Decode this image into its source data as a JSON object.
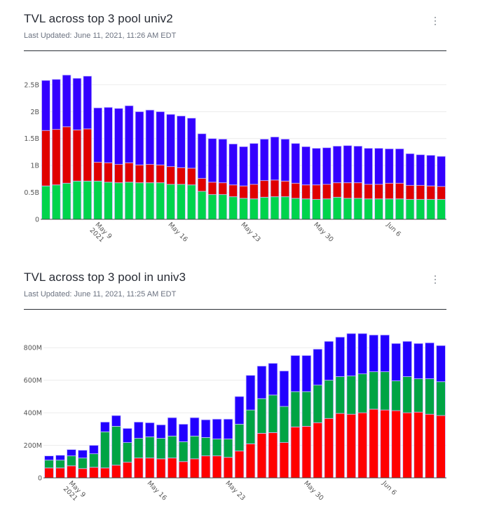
{
  "cards": [
    {
      "title": "TVL across top 3 pool univ2",
      "last_updated": "Last Updated: June 11, 2021, 11:26 AM EDT",
      "menu_icon": "kebab-menu-icon"
    },
    {
      "title": "TVL across top 3 pool in univ3",
      "last_updated": "Last Updated: June 11, 2021, 11:25 AM EDT",
      "menu_icon": "kebab-menu-icon"
    }
  ],
  "chart_data": [
    {
      "type": "bar",
      "stacked": true,
      "title": "TVL across top 3 pool univ2",
      "xlabel": "",
      "ylabel": "",
      "x_start": "2021-05-04",
      "x_end": "2021-06-11",
      "x_ticks": [
        {
          "date_index": 5,
          "label": "May 9",
          "sublabel": "2021"
        },
        {
          "date_index": 12,
          "label": "May 16",
          "sublabel": ""
        },
        {
          "date_index": 19,
          "label": "May 23",
          "sublabel": ""
        },
        {
          "date_index": 26,
          "label": "May 30",
          "sublabel": ""
        },
        {
          "date_index": 33,
          "label": "Jun 6",
          "sublabel": ""
        }
      ],
      "y_ticks": [
        {
          "value": 0,
          "label": "0"
        },
        {
          "value": 0.5,
          "label": "0.5B"
        },
        {
          "value": 1,
          "label": "1B"
        },
        {
          "value": 1.5,
          "label": "1.5B"
        },
        {
          "value": 2,
          "label": "2B"
        },
        {
          "value": 2.5,
          "label": "2.5B"
        }
      ],
      "ylim": [
        0,
        2.72
      ],
      "units": "billions USD",
      "grid": true,
      "legend": "none",
      "series": [
        {
          "name": "pool-green",
          "color": "#00d44c",
          "values": [
            0.62,
            0.64,
            0.67,
            0.71,
            0.71,
            0.71,
            0.69,
            0.68,
            0.69,
            0.68,
            0.68,
            0.68,
            0.65,
            0.65,
            0.64,
            0.52,
            0.46,
            0.46,
            0.42,
            0.39,
            0.38,
            0.41,
            0.42,
            0.42,
            0.39,
            0.38,
            0.37,
            0.38,
            0.41,
            0.39,
            0.39,
            0.38,
            0.38,
            0.38,
            0.38,
            0.37,
            0.37,
            0.37,
            0.37
          ]
        },
        {
          "name": "pool-red",
          "color": "#e00000",
          "values": [
            1.03,
            1.03,
            1.05,
            0.95,
            0.97,
            0.35,
            0.36,
            0.34,
            0.36,
            0.33,
            0.34,
            0.33,
            0.33,
            0.31,
            0.31,
            0.24,
            0.23,
            0.22,
            0.22,
            0.23,
            0.27,
            0.31,
            0.31,
            0.29,
            0.28,
            0.26,
            0.27,
            0.27,
            0.27,
            0.29,
            0.29,
            0.27,
            0.27,
            0.29,
            0.29,
            0.26,
            0.26,
            0.25,
            0.24
          ]
        },
        {
          "name": "pool-blue",
          "color": "#3300ff",
          "values": [
            0.93,
            0.93,
            0.96,
            0.96,
            0.98,
            1.01,
            1.03,
            1.04,
            1.06,
            0.99,
            1.01,
            0.99,
            0.97,
            0.96,
            0.93,
            0.83,
            0.81,
            0.81,
            0.76,
            0.73,
            0.76,
            0.77,
            0.8,
            0.78,
            0.74,
            0.71,
            0.68,
            0.68,
            0.68,
            0.69,
            0.68,
            0.67,
            0.67,
            0.64,
            0.64,
            0.59,
            0.57,
            0.57,
            0.56
          ]
        }
      ]
    },
    {
      "type": "bar",
      "stacked": true,
      "title": "TVL across top 3 pool in univ3",
      "xlabel": "",
      "ylabel": "",
      "x_start": "2021-05-07",
      "x_end": "2021-06-11",
      "x_ticks": [
        {
          "date_index": 2,
          "label": "May 9",
          "sublabel": "2021"
        },
        {
          "date_index": 9,
          "label": "May 16",
          "sublabel": ""
        },
        {
          "date_index": 16,
          "label": "May 23",
          "sublabel": ""
        },
        {
          "date_index": 23,
          "label": "May 30",
          "sublabel": ""
        },
        {
          "date_index": 30,
          "label": "Jun 6",
          "sublabel": ""
        }
      ],
      "y_ticks": [
        {
          "value": 0,
          "label": "0"
        },
        {
          "value": 200,
          "label": "200M"
        },
        {
          "value": 400,
          "label": "400M"
        },
        {
          "value": 600,
          "label": "600M"
        },
        {
          "value": 800,
          "label": "800M"
        }
      ],
      "ylim": [
        0,
        930
      ],
      "units": "millions USD",
      "grid": true,
      "legend": "none",
      "series": [
        {
          "name": "pool-red",
          "color": "#ff0000",
          "values": [
            61,
            61,
            74,
            57,
            65,
            61,
            78,
            96,
            122,
            122,
            117,
            122,
            100,
            117,
            135,
            135,
            126,
            165,
            209,
            274,
            278,
            217,
            313,
            317,
            339,
            365,
            396,
            391,
            400,
            422,
            417,
            413,
            400,
            404,
            391,
            383
          ]
        },
        {
          "name": "pool-green",
          "color": "#00a444",
          "values": [
            48,
            48,
            61,
            65,
            83,
            222,
            239,
            121,
            121,
            130,
            126,
            135,
            122,
            140,
            113,
            104,
            113,
            165,
            208,
            213,
            231,
            222,
            217,
            213,
            231,
            235,
            226,
            235,
            239,
            230,
            235,
            183,
            222,
            205,
            218,
            208
          ]
        },
        {
          "name": "pool-blue",
          "color": "#2200ff",
          "values": [
            26,
            30,
            39,
            48,
            52,
            60,
            66,
            87,
            100,
            87,
            83,
            113,
            108,
            113,
            109,
            122,
            122,
            170,
            213,
            200,
            195,
            218,
            222,
            222,
            221,
            239,
            243,
            261,
            248,
            226,
            226,
            230,
            217,
            217,
            221,
            222
          ]
        }
      ]
    }
  ]
}
